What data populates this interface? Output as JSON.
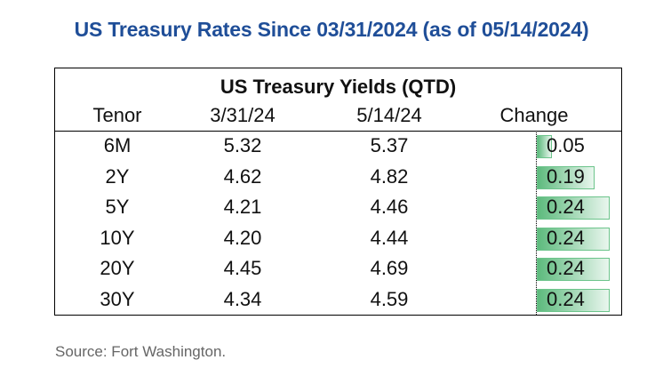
{
  "title": "US Treasury Rates Since 03/31/2024 (as of 05/14/2024)",
  "source": "Source: Fort Washington.",
  "colors": {
    "title": "#1f4e98",
    "bar": "#5dba7d"
  },
  "chart_data": {
    "type": "table",
    "title": "US Treasury Yields (QTD)",
    "columns": [
      "Tenor",
      "3/31/24",
      "5/14/24",
      "Change"
    ],
    "rows": [
      {
        "tenor": "6M",
        "start": "5.32",
        "end": "5.37",
        "change": "0.05"
      },
      {
        "tenor": "2Y",
        "start": "4.62",
        "end": "4.82",
        "change": "0.19"
      },
      {
        "tenor": "5Y",
        "start": "4.21",
        "end": "4.46",
        "change": "0.24"
      },
      {
        "tenor": "10Y",
        "start": "4.20",
        "end": "4.44",
        "change": "0.24"
      },
      {
        "tenor": "20Y",
        "start": "4.45",
        "end": "4.69",
        "change": "0.24"
      },
      {
        "tenor": "30Y",
        "start": "4.34",
        "end": "4.59",
        "change": "0.24"
      }
    ],
    "change_bar_max": 0.24
  }
}
